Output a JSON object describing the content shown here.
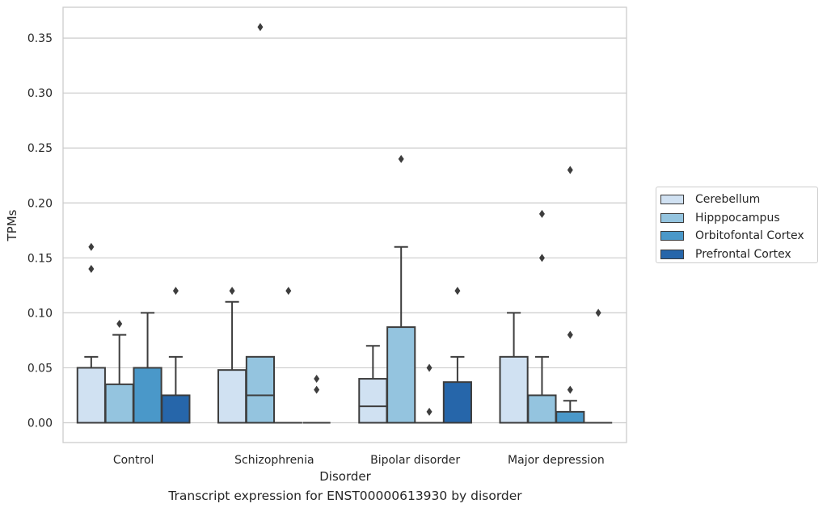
{
  "chart_data": {
    "type": "box",
    "title": "Transcript expression for ENST00000613930 by disorder",
    "xlabel": "Disorder",
    "ylabel": "TPMs",
    "ylim": [
      -0.018,
      0.378
    ],
    "yticks": [
      0.0,
      0.05,
      0.1,
      0.15,
      0.2,
      0.25,
      0.3,
      0.35
    ],
    "ytick_labels": [
      "0.00",
      "0.05",
      "0.10",
      "0.15",
      "0.20",
      "0.25",
      "0.30",
      "0.35"
    ],
    "categories": [
      "Control",
      "Schizophrenia",
      "Bipolar disorder",
      "Major depression"
    ],
    "grid": true,
    "legend_position": "right",
    "series": [
      {
        "name": "Cerebellum",
        "color": "#d0e1f2",
        "boxes": [
          {
            "whislo": 0.0,
            "q1": 0.0,
            "med": 0.0,
            "q3": 0.05,
            "whishi": 0.06,
            "fliers": [
              0.14,
              0.16
            ]
          },
          {
            "whislo": 0.0,
            "q1": 0.0,
            "med": 0.0,
            "q3": 0.048,
            "whishi": 0.11,
            "fliers": [
              0.12
            ]
          },
          {
            "whislo": 0.0,
            "q1": 0.0,
            "med": 0.015,
            "q3": 0.04,
            "whishi": 0.07,
            "fliers": []
          },
          {
            "whislo": 0.0,
            "q1": 0.0,
            "med": 0.0,
            "q3": 0.06,
            "whishi": 0.1,
            "fliers": []
          }
        ]
      },
      {
        "name": "Hipppocampus",
        "color": "#94c4df",
        "boxes": [
          {
            "whislo": 0.0,
            "q1": 0.0,
            "med": 0.0,
            "q3": 0.035,
            "whishi": 0.08,
            "fliers": [
              0.09
            ]
          },
          {
            "whislo": 0.0,
            "q1": 0.0,
            "med": 0.025,
            "q3": 0.06,
            "whishi": 0.06,
            "fliers": [
              0.36
            ]
          },
          {
            "whislo": 0.0,
            "q1": 0.0,
            "med": 0.0,
            "q3": 0.087,
            "whishi": 0.16,
            "fliers": [
              0.24
            ]
          },
          {
            "whislo": 0.0,
            "q1": 0.0,
            "med": 0.0,
            "q3": 0.025,
            "whishi": 0.06,
            "fliers": [
              0.15,
              0.19
            ]
          }
        ]
      },
      {
        "name": "Orbitofontal Cortex",
        "color": "#4a98c9",
        "boxes": [
          {
            "whislo": 0.0,
            "q1": 0.0,
            "med": 0.0,
            "q3": 0.05,
            "whishi": 0.1,
            "fliers": []
          },
          {
            "whislo": 0.0,
            "q1": 0.0,
            "med": 0.0,
            "q3": 0.0,
            "whishi": 0.0,
            "fliers": [
              0.12
            ]
          },
          {
            "whislo": 0.0,
            "q1": 0.0,
            "med": 0.0,
            "q3": 0.0,
            "whishi": 0.0,
            "fliers": [
              0.01,
              0.05
            ]
          },
          {
            "whislo": 0.0,
            "q1": 0.0,
            "med": 0.0,
            "q3": 0.01,
            "whishi": 0.02,
            "fliers": [
              0.03,
              0.08,
              0.23
            ]
          }
        ]
      },
      {
        "name": "Prefrontal Cortex",
        "color": "#2666aa",
        "boxes": [
          {
            "whislo": 0.0,
            "q1": 0.0,
            "med": 0.0,
            "q3": 0.025,
            "whishi": 0.06,
            "fliers": [
              0.12
            ]
          },
          {
            "whislo": 0.0,
            "q1": 0.0,
            "med": 0.0,
            "q3": 0.0,
            "whishi": 0.0,
            "fliers": [
              0.03,
              0.04
            ]
          },
          {
            "whislo": 0.0,
            "q1": 0.0,
            "med": 0.0,
            "q3": 0.037,
            "whishi": 0.06,
            "fliers": [
              0.12
            ]
          },
          {
            "whislo": 0.0,
            "q1": 0.0,
            "med": 0.0,
            "q3": 0.0,
            "whishi": 0.0,
            "fliers": [
              0.1
            ]
          }
        ]
      }
    ]
  }
}
